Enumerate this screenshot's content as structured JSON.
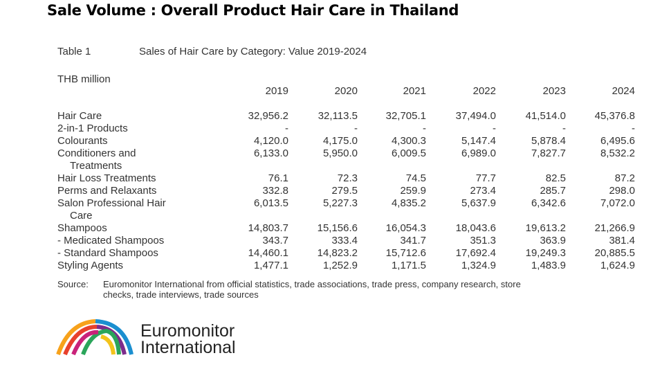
{
  "title": "Sale Volume  : Overall Product Hair Care in Thailand",
  "table": {
    "label": "Table 1",
    "caption": "Sales of Hair Care by Category: Value 2019-2024",
    "unit": "THB million",
    "columns": [
      "2019",
      "2020",
      "2021",
      "2022",
      "2023",
      "2024"
    ],
    "rows": [
      {
        "label": "Hair Care",
        "values": [
          "32,956.2",
          "32,113.5",
          "32,705.1",
          "37,494.0",
          "41,514.0",
          "45,376.8"
        ]
      },
      {
        "label": "2-in-1 Products",
        "values": [
          "-",
          "-",
          "-",
          "-",
          "-",
          "-"
        ]
      },
      {
        "label": "Colourants",
        "values": [
          "4,120.0",
          "4,175.0",
          "4,300.3",
          "5,147.4",
          "5,878.4",
          "6,495.6"
        ]
      },
      {
        "label": "Conditioners and Treatments",
        "values": [
          "6,133.0",
          "5,950.0",
          "6,009.5",
          "6,989.0",
          "7,827.7",
          "8,532.2"
        ]
      },
      {
        "label": "Hair Loss Treatments",
        "values": [
          "76.1",
          "72.3",
          "74.5",
          "77.7",
          "82.5",
          "87.2"
        ]
      },
      {
        "label": "Perms and Relaxants",
        "values": [
          "332.8",
          "279.5",
          "259.9",
          "273.4",
          "285.7",
          "298.0"
        ]
      },
      {
        "label": "Salon Professional Hair Care",
        "values": [
          "6,013.5",
          "5,227.3",
          "4,835.2",
          "5,637.9",
          "6,342.6",
          "7,072.0"
        ]
      },
      {
        "label": "Shampoos",
        "values": [
          "14,803.7",
          "15,156.6",
          "16,054.3",
          "18,043.6",
          "19,613.2",
          "21,266.9"
        ]
      },
      {
        "label": "- Medicated Shampoos",
        "values": [
          "343.7",
          "333.4",
          "341.7",
          "351.3",
          "363.9",
          "381.4"
        ]
      },
      {
        "label": "- Standard Shampoos",
        "values": [
          "14,460.1",
          "14,823.2",
          "15,712.6",
          "17,692.4",
          "19,249.3",
          "20,885.5"
        ]
      },
      {
        "label": "Styling Agents",
        "values": [
          "1,477.1",
          "1,252.9",
          "1,171.5",
          "1,324.9",
          "1,483.9",
          "1,624.9"
        ]
      }
    ]
  },
  "source": {
    "label": "Source:",
    "text": "Euromonitor International from official statistics, trade associations, trade press, company research, store checks, trade interviews, trade sources"
  },
  "logo": {
    "line1": "Euromonitor",
    "line2": "International"
  }
}
